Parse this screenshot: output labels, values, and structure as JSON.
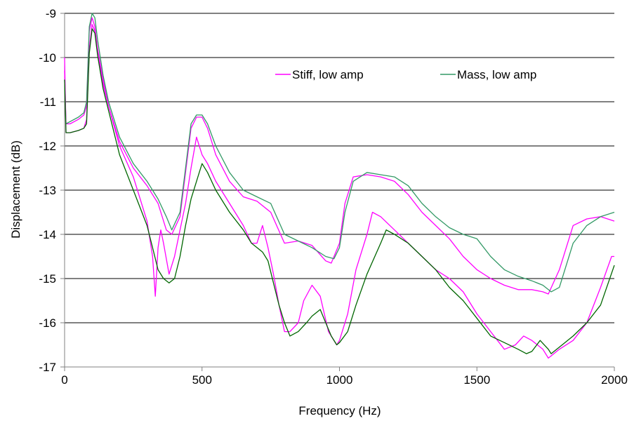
{
  "chart_data": {
    "type": "line",
    "title": "",
    "xlabel": "Frequency (Hz)",
    "ylabel": "Displacement (dB)",
    "xlim": [
      0,
      2000
    ],
    "ylim": [
      -17,
      -9
    ],
    "xticks": [
      0,
      500,
      1000,
      1500,
      2000
    ],
    "xtick_labels": [
      "0",
      "500",
      "1000",
      "1500",
      "2000"
    ],
    "yticks": [
      -9,
      -10,
      -11,
      -12,
      -13,
      -14,
      -15,
      -16,
      -17
    ],
    "ytick_labels": [
      "-9",
      "-10",
      "-11",
      "-12",
      "-13",
      "-14",
      "-15",
      "-16",
      "-17"
    ],
    "grid": "horizontal",
    "legend_position": "top-right",
    "legend": [
      "Stiff, low amp",
      "Mass, low amp"
    ],
    "series": [
      {
        "name": "Stiff, low amp",
        "color": "#ff00ff",
        "x": [
          0,
          5,
          20,
          50,
          70,
          80,
          90,
          100,
          110,
          120,
          140,
          160,
          200,
          250,
          300,
          340,
          370,
          390,
          420,
          440,
          460,
          480,
          500,
          520,
          550,
          600,
          650,
          700,
          750,
          800,
          850,
          900,
          950,
          970,
          1000,
          1020,
          1050,
          1100,
          1150,
          1200,
          1250,
          1300,
          1350,
          1400,
          1450,
          1500,
          1550,
          1600,
          1650,
          1700,
          1740,
          1760,
          1800,
          1850,
          1900,
          1950,
          2000
        ],
        "y": [
          -10.3,
          -11.5,
          -11.5,
          -11.4,
          -11.3,
          -11.1,
          -9.4,
          -9.1,
          -9.3,
          -9.8,
          -10.5,
          -11.1,
          -11.9,
          -12.5,
          -12.9,
          -13.3,
          -13.9,
          -14.0,
          -13.6,
          -12.6,
          -11.6,
          -11.35,
          -11.35,
          -11.6,
          -12.2,
          -12.8,
          -13.15,
          -13.25,
          -13.5,
          -14.2,
          -14.15,
          -14.25,
          -14.6,
          -14.65,
          -14.2,
          -13.3,
          -12.7,
          -12.65,
          -12.7,
          -12.8,
          -13.1,
          -13.5,
          -13.8,
          -14.1,
          -14.5,
          -14.8,
          -15.0,
          -15.15,
          -15.25,
          -15.25,
          -15.3,
          -15.35,
          -14.8,
          -13.8,
          -13.65,
          -13.6,
          -13.7
        ]
      },
      {
        "name": "Mass, low amp",
        "color": "#339966",
        "x": [
          0,
          5,
          20,
          50,
          70,
          80,
          90,
          100,
          110,
          120,
          140,
          160,
          200,
          250,
          300,
          340,
          370,
          390,
          420,
          440,
          460,
          480,
          500,
          520,
          550,
          600,
          650,
          700,
          750,
          800,
          850,
          900,
          950,
          980,
          1000,
          1020,
          1050,
          1100,
          1150,
          1200,
          1250,
          1300,
          1350,
          1400,
          1450,
          1500,
          1550,
          1600,
          1650,
          1700,
          1740,
          1770,
          1800,
          1850,
          1900,
          1950,
          2000
        ],
        "y": [
          -10.5,
          -11.5,
          -11.45,
          -11.35,
          -11.25,
          -11.0,
          -9.3,
          -9.0,
          -9.1,
          -9.6,
          -10.4,
          -11.0,
          -11.8,
          -12.4,
          -12.8,
          -13.2,
          -13.6,
          -13.9,
          -13.5,
          -12.5,
          -11.5,
          -11.3,
          -11.3,
          -11.5,
          -12.0,
          -12.6,
          -13.0,
          -13.15,
          -13.3,
          -14.0,
          -14.15,
          -14.3,
          -14.5,
          -14.55,
          -14.3,
          -13.5,
          -12.8,
          -12.6,
          -12.65,
          -12.7,
          -12.9,
          -13.3,
          -13.6,
          -13.85,
          -14.0,
          -14.1,
          -14.5,
          -14.8,
          -14.95,
          -15.05,
          -15.15,
          -15.3,
          -15.2,
          -14.2,
          -13.8,
          -13.6,
          -13.5
        ]
      },
      {
        "name": "",
        "color": "#ff00ff",
        "x": [
          0,
          5,
          20,
          50,
          70,
          80,
          90,
          100,
          110,
          120,
          140,
          160,
          200,
          250,
          300,
          320,
          330,
          340,
          350,
          360,
          380,
          400,
          420,
          440,
          460,
          480,
          490,
          500,
          520,
          550,
          600,
          650,
          680,
          700,
          720,
          740,
          760,
          780,
          800,
          820,
          850,
          870,
          900,
          930,
          960,
          990,
          1000,
          1030,
          1060,
          1100,
          1120,
          1150,
          1200,
          1250,
          1300,
          1350,
          1400,
          1450,
          1500,
          1550,
          1600,
          1640,
          1670,
          1700,
          1740,
          1760,
          1800,
          1850,
          1900,
          1950,
          1990,
          2000
        ],
        "y": [
          -10.0,
          -11.7,
          -11.7,
          -11.65,
          -11.6,
          -11.4,
          -9.8,
          -9.25,
          -9.4,
          -9.9,
          -10.6,
          -11.1,
          -12.0,
          -12.7,
          -13.7,
          -14.5,
          -15.4,
          -14.3,
          -13.9,
          -14.2,
          -14.9,
          -14.5,
          -13.9,
          -13.3,
          -12.5,
          -11.8,
          -12.0,
          -12.2,
          -12.4,
          -12.8,
          -13.3,
          -13.8,
          -14.2,
          -14.2,
          -13.8,
          -14.3,
          -14.9,
          -15.6,
          -16.2,
          -16.2,
          -16.0,
          -15.5,
          -15.15,
          -15.4,
          -16.2,
          -16.5,
          -16.4,
          -15.8,
          -14.8,
          -14.0,
          -13.5,
          -13.6,
          -13.9,
          -14.2,
          -14.5,
          -14.8,
          -15.0,
          -15.3,
          -15.8,
          -16.2,
          -16.6,
          -16.5,
          -16.3,
          -16.4,
          -16.6,
          -16.8,
          -16.6,
          -16.4,
          -16.0,
          -15.2,
          -14.5,
          -14.5
        ]
      },
      {
        "name": "",
        "color": "#006600",
        "x": [
          0,
          5,
          20,
          50,
          70,
          80,
          90,
          100,
          110,
          120,
          140,
          160,
          200,
          250,
          300,
          320,
          340,
          360,
          380,
          400,
          420,
          440,
          460,
          480,
          490,
          500,
          520,
          550,
          600,
          650,
          680,
          700,
          720,
          740,
          760,
          780,
          800,
          820,
          850,
          880,
          900,
          930,
          950,
          970,
          990,
          1000,
          1030,
          1060,
          1100,
          1150,
          1170,
          1200,
          1250,
          1300,
          1350,
          1400,
          1450,
          1500,
          1550,
          1600,
          1650,
          1680,
          1700,
          1730,
          1760,
          1770,
          1800,
          1850,
          1900,
          1950,
          2000
        ],
        "y": [
          -10.5,
          -11.7,
          -11.7,
          -11.65,
          -11.6,
          -11.5,
          -9.9,
          -9.35,
          -9.45,
          -9.95,
          -10.7,
          -11.2,
          -12.2,
          -13.0,
          -13.8,
          -14.3,
          -14.8,
          -15.0,
          -15.1,
          -15.0,
          -14.5,
          -13.8,
          -13.2,
          -12.8,
          -12.6,
          -12.4,
          -12.6,
          -13.0,
          -13.5,
          -13.9,
          -14.2,
          -14.3,
          -14.4,
          -14.6,
          -15.1,
          -15.6,
          -16.0,
          -16.3,
          -16.2,
          -16.0,
          -15.85,
          -15.7,
          -16.0,
          -16.3,
          -16.5,
          -16.45,
          -16.2,
          -15.6,
          -14.9,
          -14.2,
          -13.9,
          -14.0,
          -14.2,
          -14.5,
          -14.8,
          -15.2,
          -15.5,
          -15.9,
          -16.3,
          -16.45,
          -16.6,
          -16.7,
          -16.65,
          -16.4,
          -16.6,
          -16.7,
          -16.55,
          -16.3,
          -16.0,
          -15.6,
          -14.7
        ]
      }
    ]
  }
}
